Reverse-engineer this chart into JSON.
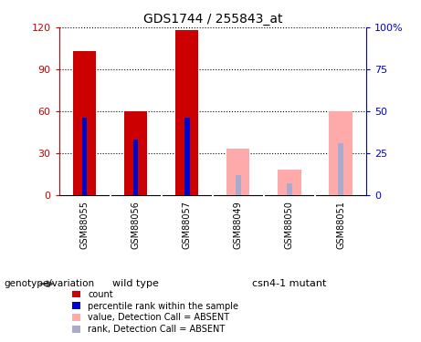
{
  "title": "GDS1744 / 255843_at",
  "categories": [
    "GSM88055",
    "GSM88056",
    "GSM88057",
    "GSM88049",
    "GSM88050",
    "GSM88051"
  ],
  "wt_count": 3,
  "mut_count": 3,
  "count_values": [
    103,
    60,
    118,
    0,
    0,
    0
  ],
  "percentile_values": [
    46,
    33,
    46,
    0,
    0,
    0
  ],
  "absent_value": [
    0,
    0,
    0,
    33,
    18,
    60
  ],
  "absent_rank": [
    0,
    0,
    0,
    12,
    7,
    31
  ],
  "ylim_left": [
    0,
    120
  ],
  "ylim_right": [
    0,
    100
  ],
  "yticks_left": [
    0,
    30,
    60,
    90,
    120
  ],
  "yticks_right": [
    0,
    25,
    50,
    75,
    100
  ],
  "ytick_labels_left": [
    "0",
    "30",
    "60",
    "90",
    "120"
  ],
  "ytick_labels_right": [
    "0",
    "25",
    "50",
    "75",
    "100%"
  ],
  "left_axis_color": "#cc0000",
  "right_axis_color": "#0000cc",
  "bar_color_present": "#cc0000",
  "bar_color_rank_present": "#0000cc",
  "bar_color_absent": "#ffaaaa",
  "bar_color_rank_absent": "#aaaacc",
  "group_wt_color": "#66ee66",
  "group_mut_color": "#66ee66",
  "group_wt_label": "wild type",
  "group_mut_label": "csn4-1 mutant",
  "genotype_label": "genotype/variation",
  "bg_tick_area": "#cccccc",
  "legend_items": [
    "count",
    "percentile rank within the sample",
    "value, Detection Call = ABSENT",
    "rank, Detection Call = ABSENT"
  ],
  "legend_colors": [
    "#cc0000",
    "#0000cc",
    "#ffaaaa",
    "#aaaacc"
  ],
  "bar_width": 0.45,
  "rank_bar_width": 0.1
}
